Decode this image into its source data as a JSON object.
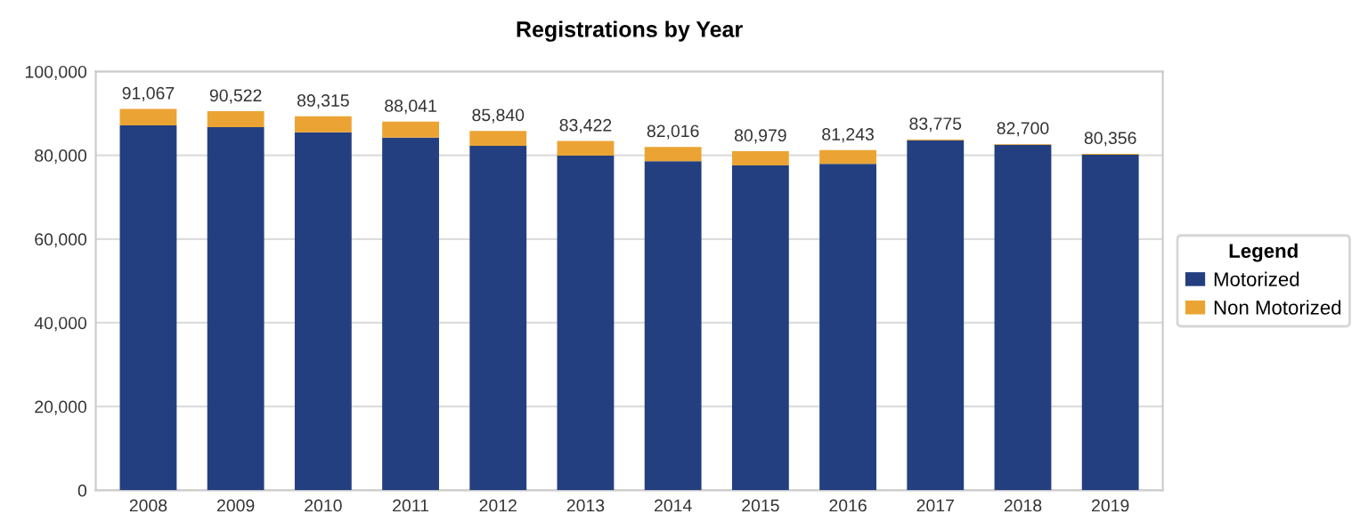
{
  "chart_data": {
    "type": "bar",
    "title": "Registrations by Year",
    "stacked": true,
    "categories": [
      "2008",
      "2009",
      "2010",
      "2011",
      "2012",
      "2013",
      "2014",
      "2015",
      "2016",
      "2017",
      "2018",
      "2019"
    ],
    "series": [
      {
        "name": "Motorized",
        "color": "#233f7f",
        "values": [
          87167,
          86722,
          85515,
          84241,
          82240,
          79922,
          78616,
          77579,
          77943,
          83575,
          82500,
          80156
        ]
      },
      {
        "name": "Non Motorized",
        "color": "#eba433",
        "values": [
          3900,
          3800,
          3800,
          3800,
          3600,
          3500,
          3400,
          3400,
          3300,
          200,
          200,
          200
        ]
      }
    ],
    "totals": [
      "91,067",
      "90,522",
      "89,315",
      "88,041",
      "85,840",
      "83,422",
      "82,016",
      "80,979",
      "81,243",
      "83,775",
      "82,700",
      "80,356"
    ],
    "ylim": [
      0,
      100000
    ],
    "yticks": [
      {
        "value": 0,
        "label": "0"
      },
      {
        "value": 20000,
        "label": "20,000"
      },
      {
        "value": 40000,
        "label": "40,000"
      },
      {
        "value": 60000,
        "label": "60,000"
      },
      {
        "value": 80000,
        "label": "80,000"
      },
      {
        "value": 100000,
        "label": "100,000"
      }
    ],
    "grid": "y",
    "legend": "right",
    "legend_title": "Legend"
  }
}
